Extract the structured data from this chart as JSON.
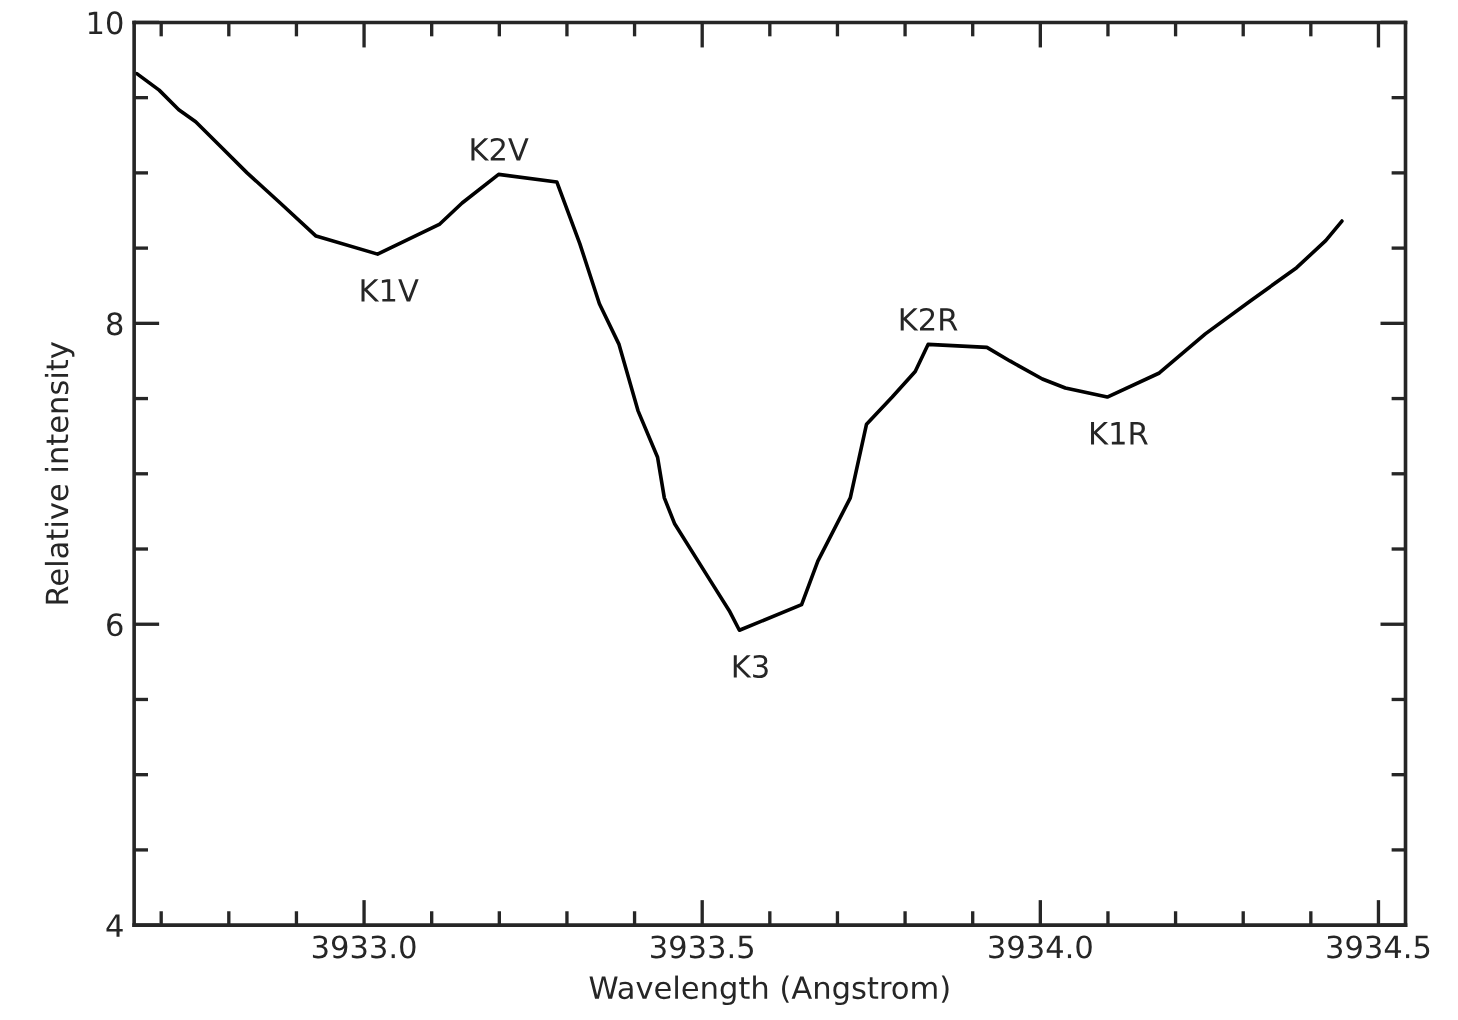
{
  "chart_data": {
    "type": "line",
    "xlabel": "Wavelength (Angstrom)",
    "ylabel": "Relative intensity",
    "x": [
      3932.664,
      3932.697,
      3932.726,
      3932.751,
      3932.789,
      3932.827,
      3932.876,
      3932.929,
      3933.02,
      3933.112,
      3933.145,
      3933.199,
      3933.285,
      3933.319,
      3933.348,
      3933.377,
      3933.405,
      3933.434,
      3933.444,
      3933.459,
      3933.512,
      3933.54,
      3933.555,
      3933.647,
      3933.671,
      3933.719,
      3933.743,
      3933.781,
      3933.815,
      3933.834,
      3933.921,
      3933.955,
      3934.003,
      3934.037,
      3934.099,
      3934.176,
      3934.244,
      3934.311,
      3934.379,
      3934.422,
      3934.446
    ],
    "series": [
      {
        "color": "#000000",
        "values": [
          9.66,
          9.55,
          9.42,
          9.34,
          9.17,
          9.0,
          8.8,
          8.58,
          8.46,
          8.66,
          8.8,
          8.99,
          8.94,
          8.53,
          8.13,
          7.86,
          7.42,
          7.11,
          6.84,
          6.67,
          6.29,
          6.09,
          5.96,
          6.13,
          6.42,
          6.84,
          7.33,
          7.51,
          7.68,
          7.86,
          7.84,
          7.75,
          7.63,
          7.57,
          7.51,
          7.67,
          7.93,
          8.15,
          8.37,
          8.55,
          8.68
        ]
      }
    ],
    "xlim": [
      3932.66,
      3934.54
    ],
    "ylim": [
      4,
      10
    ],
    "xticks": [
      {
        "value": 3932.7,
        "label": null
      },
      {
        "value": 3932.8,
        "label": null
      },
      {
        "value": 3932.9,
        "label": null
      },
      {
        "value": 3933.0,
        "label": "3933.0"
      },
      {
        "value": 3933.1,
        "label": null
      },
      {
        "value": 3933.2,
        "label": null
      },
      {
        "value": 3933.3,
        "label": null
      },
      {
        "value": 3933.4,
        "label": null
      },
      {
        "value": 3933.5,
        "label": "3933.5"
      },
      {
        "value": 3933.6,
        "label": null
      },
      {
        "value": 3933.7,
        "label": null
      },
      {
        "value": 3933.8,
        "label": null
      },
      {
        "value": 3933.9,
        "label": null
      },
      {
        "value": 3934.0,
        "label": "3934.0"
      },
      {
        "value": 3934.1,
        "label": null
      },
      {
        "value": 3934.2,
        "label": null
      },
      {
        "value": 3934.3,
        "label": null
      },
      {
        "value": 3934.4,
        "label": null
      },
      {
        "value": 3934.5,
        "label": "3934.5"
      }
    ],
    "yticks": [
      4,
      {
        "value": 4.5,
        "label": null
      },
      {
        "value": 5,
        "label": null
      },
      {
        "value": 5.5,
        "label": null
      },
      6,
      {
        "value": 6.5,
        "label": null
      },
      {
        "value": 7,
        "label": null
      },
      {
        "value": 7.5,
        "label": null
      },
      8,
      {
        "value": 8.5,
        "label": null
      },
      {
        "value": 9,
        "label": null
      },
      {
        "value": 9.5,
        "label": null
      },
      10
    ],
    "grid": false,
    "legend": false,
    "marker": "none",
    "line_style": "solid",
    "annotations": [
      {
        "text": "K1V",
        "x": 3933.02,
        "y": 8.46
      },
      {
        "text": "K2V",
        "x": 3933.199,
        "y": 8.99
      },
      {
        "text": "K3",
        "x": 3933.555,
        "y": 5.96
      },
      {
        "text": "K2R",
        "x": 3933.834,
        "y": 7.86
      },
      {
        "text": "K1R",
        "x": 3934.099,
        "y": 7.51
      }
    ]
  }
}
